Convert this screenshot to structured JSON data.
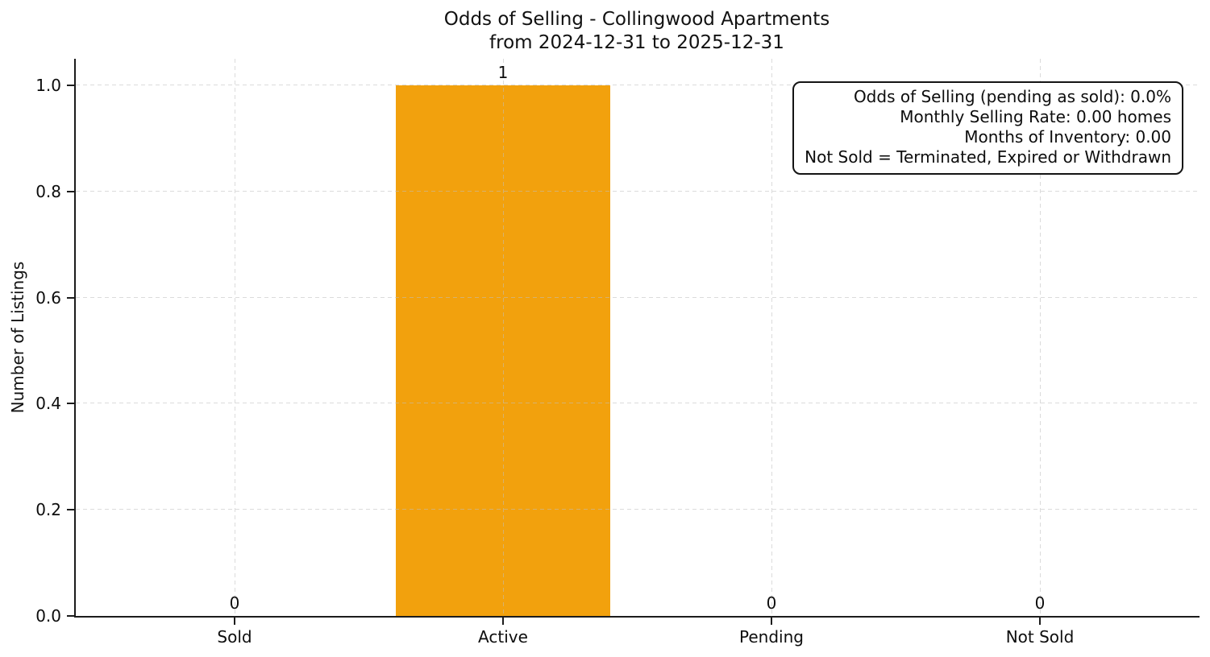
{
  "figure": {
    "title_line1": "Odds of Selling - Collingwood Apartments",
    "title_line2": "from 2024-12-31 to 2025-12-31"
  },
  "chart_data": {
    "type": "bar",
    "title": "Odds of Selling - Collingwood Apartments\nfrom 2024-12-31 to 2025-12-31",
    "xlabel": "",
    "ylabel": "Number of Listings",
    "categories": [
      "Sold",
      "Active",
      "Pending",
      "Not Sold"
    ],
    "values": [
      0,
      1,
      0,
      0
    ],
    "bar_labels": [
      "0",
      "1",
      "0",
      "0"
    ],
    "bar_color": "#F2A10D",
    "ylim": [
      0,
      1.05
    ],
    "yticks": [
      0.0,
      0.2,
      0.4,
      0.6,
      0.8,
      1.0
    ],
    "ytick_labels": [
      "0.0",
      "0.2",
      "0.4",
      "0.6",
      "0.8",
      "1.0"
    ],
    "grid": true,
    "grid_style": "dashed",
    "legend_position": "none",
    "annotation_box": {
      "position": "upper-right",
      "lines": [
        "Odds of Selling (pending as sold): 0.0%",
        "Monthly Selling Rate: 0.00 homes",
        "Months of Inventory: 0.00",
        "Not Sold = Terminated, Expired or Withdrawn"
      ]
    }
  }
}
